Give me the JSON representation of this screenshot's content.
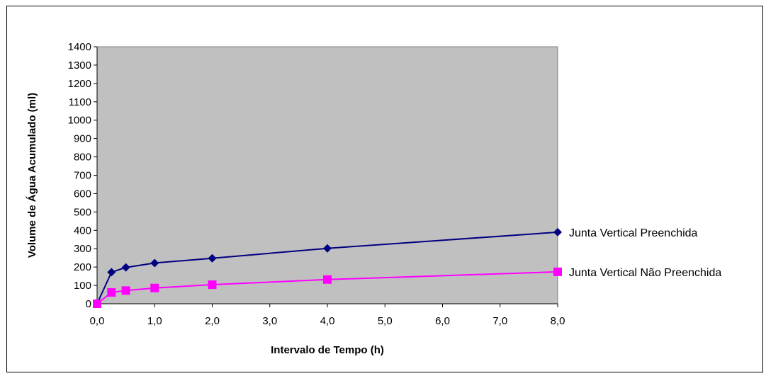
{
  "chart_data": {
    "type": "line",
    "title": "",
    "xlabel": "Intervalo de Tempo (h)",
    "ylabel": "Volume de Água Acumulado (ml)",
    "xlim": [
      0,
      8
    ],
    "ylim": [
      0,
      1400
    ],
    "x_ticks": [
      "0,0",
      "1,0",
      "2,0",
      "3,0",
      "4,0",
      "5,0",
      "6,0",
      "7,0",
      "8,0"
    ],
    "y_ticks": [
      "0",
      "100",
      "200",
      "300",
      "400",
      "500",
      "600",
      "700",
      "800",
      "900",
      "1000",
      "1100",
      "1200",
      "1300",
      "1400"
    ],
    "grid": false,
    "legend_position": "right",
    "plot_background": "#c0c0c0",
    "series": [
      {
        "name": "Junta Vertical Preenchida",
        "color": "#000080",
        "marker": "diamond",
        "x": [
          0,
          0.25,
          0.5,
          1,
          2,
          4,
          8
        ],
        "y": [
          0,
          172,
          198,
          222,
          248,
          302,
          390
        ]
      },
      {
        "name": "Junta Vertical Não Preenchida",
        "color": "#ff00ff",
        "marker": "square",
        "x": [
          0,
          0.25,
          0.5,
          1,
          2,
          4,
          8
        ],
        "y": [
          0,
          62,
          72,
          86,
          104,
          132,
          174
        ]
      }
    ]
  }
}
